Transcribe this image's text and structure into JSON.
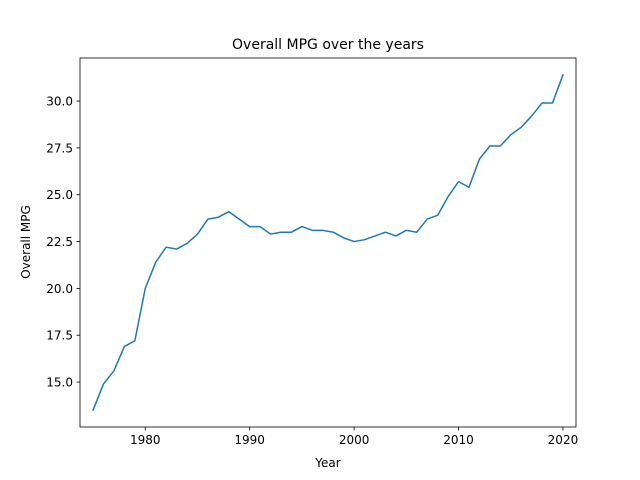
{
  "chart_data": {
    "type": "line",
    "title": "Overall MPG over the years",
    "xlabel": "Year",
    "ylabel": "Overall MPG",
    "xlim": [
      1973.75,
      2021.25
    ],
    "ylim": [
      12.6,
      32.3
    ],
    "xticks": [
      1980,
      1990,
      2000,
      2010,
      2020
    ],
    "xtick_labels": [
      "1980",
      "1990",
      "2000",
      "2010",
      "2020"
    ],
    "yticks": [
      15.0,
      17.5,
      20.0,
      22.5,
      25.0,
      27.5,
      30.0
    ],
    "ytick_labels": [
      "15.0",
      "17.5",
      "20.0",
      "22.5",
      "25.0",
      "27.5",
      "30.0"
    ],
    "grid": false,
    "legend": "none",
    "series": [
      {
        "color": "#1f77b4",
        "x": [
          1975,
          1976,
          1977,
          1978,
          1979,
          1980,
          1981,
          1982,
          1983,
          1984,
          1985,
          1986,
          1987,
          1988,
          1989,
          1990,
          1991,
          1992,
          1993,
          1994,
          1995,
          1996,
          1997,
          1998,
          1999,
          2000,
          2001,
          2002,
          2003,
          2004,
          2005,
          2006,
          2007,
          2008,
          2009,
          2010,
          2011,
          2012,
          2013,
          2014,
          2015,
          2016,
          2017,
          2018,
          2019,
          2020
        ],
        "values": [
          13.5,
          14.9,
          15.6,
          16.9,
          17.2,
          20.0,
          21.4,
          22.2,
          22.1,
          22.4,
          22.9,
          23.7,
          23.8,
          24.1,
          23.7,
          23.3,
          23.3,
          22.9,
          23.0,
          23.0,
          23.3,
          23.1,
          23.1,
          23.0,
          22.7,
          22.5,
          22.6,
          22.8,
          23.0,
          22.8,
          23.1,
          23.0,
          23.7,
          23.9,
          24.9,
          25.7,
          25.4,
          26.9,
          27.6,
          27.6,
          28.2,
          28.6,
          29.2,
          29.9,
          29.9,
          31.4
        ]
      }
    ]
  }
}
